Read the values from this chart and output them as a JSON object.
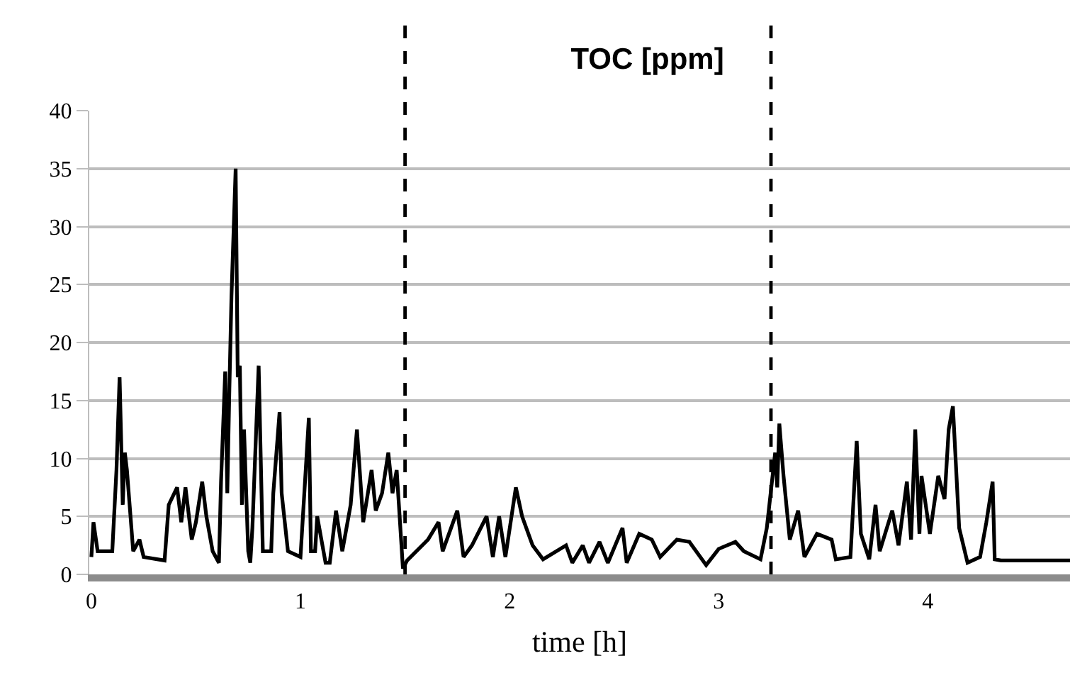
{
  "chart_data": {
    "type": "line",
    "title": "TOC [ppm]",
    "xlabel": "time [h]",
    "xlim": [
      -0.01,
      4.68
    ],
    "xticks": [
      0,
      1,
      2,
      3,
      4
    ],
    "ylim": [
      0,
      40
    ],
    "yticks": [
      0,
      5,
      10,
      15,
      20,
      25,
      30,
      35,
      40
    ],
    "grid": "y",
    "marker": "none",
    "line_style": "solid",
    "ref_lines": [
      {
        "axis": "x",
        "value": 1.5,
        "line_style": "dashed",
        "color": "#000000"
      },
      {
        "axis": "x",
        "value": 3.25,
        "line_style": "dashed",
        "color": "#000000"
      }
    ],
    "series": [
      {
        "color": "#000000",
        "x": [
          0,
          0.01,
          0.03,
          0.1,
          0.12,
          0.135,
          0.15,
          0.16,
          0.17,
          0.2,
          0.23,
          0.25,
          0.35,
          0.37,
          0.41,
          0.43,
          0.45,
          0.48,
          0.5,
          0.53,
          0.55,
          0.58,
          0.61,
          0.62,
          0.64,
          0.65,
          0.66,
          0.67,
          0.69,
          0.7,
          0.71,
          0.72,
          0.73,
          0.75,
          0.76,
          0.77,
          0.8,
          0.82,
          0.86,
          0.87,
          0.9,
          0.91,
          0.94,
          1.0,
          1.04,
          1.05,
          1.07,
          1.08,
          1.12,
          1.14,
          1.17,
          1.2,
          1.24,
          1.27,
          1.3,
          1.34,
          1.36,
          1.39,
          1.42,
          1.44,
          1.46,
          1.49,
          1.51,
          1.61,
          1.66,
          1.68,
          1.75,
          1.78,
          1.82,
          1.89,
          1.92,
          1.95,
          1.98,
          2.03,
          2.06,
          2.11,
          2.16,
          2.27,
          2.3,
          2.35,
          2.38,
          2.43,
          2.47,
          2.54,
          2.56,
          2.62,
          2.68,
          2.72,
          2.8,
          2.86,
          2.94,
          3.0,
          3.08,
          3.12,
          3.2,
          3.23,
          3.27,
          3.28,
          3.29,
          3.31,
          3.34,
          3.38,
          3.41,
          3.47,
          3.54,
          3.56,
          3.63,
          3.66,
          3.68,
          3.72,
          3.75,
          3.77,
          3.83,
          3.86,
          3.9,
          3.92,
          3.94,
          3.96,
          3.97,
          4.01,
          4.05,
          4.08,
          4.1,
          4.12,
          4.15,
          4.19,
          4.25,
          4.28,
          4.31,
          4.32,
          4.35,
          4.68
        ],
        "values": [
          1.5,
          4.5,
          2,
          2,
          9,
          17,
          6,
          10.5,
          9,
          2,
          3,
          1.5,
          1.2,
          6,
          7.5,
          4.5,
          7.5,
          3,
          4.5,
          8,
          5,
          2,
          1,
          8,
          17.5,
          7,
          16,
          24,
          35,
          17,
          18,
          6,
          12.5,
          2,
          1,
          4,
          18,
          2,
          2,
          7,
          14,
          7,
          2,
          1.5,
          13.5,
          2,
          2,
          5,
          1,
          1,
          5.5,
          2,
          6,
          12.5,
          4.5,
          9,
          5.5,
          7,
          10.5,
          7,
          9,
          0.5,
          1.2,
          3,
          4.5,
          2,
          5.5,
          1.5,
          2.5,
          5,
          1.5,
          5,
          1.5,
          7.5,
          5,
          2.5,
          1.3,
          2.5,
          1,
          2.5,
          1,
          2.8,
          1,
          4,
          1,
          3.5,
          3,
          1.5,
          3,
          2.8,
          0.8,
          2.2,
          2.8,
          2,
          1.3,
          4,
          10.5,
          7.5,
          13,
          8.5,
          3,
          5.5,
          1.5,
          3.5,
          3,
          1.3,
          1.5,
          11.5,
          3.5,
          1.3,
          6,
          2,
          5.5,
          2.5,
          8,
          3,
          12.5,
          3.5,
          8.5,
          3.5,
          8.5,
          6.5,
          12.5,
          14.5,
          4,
          1,
          1.5,
          4.5,
          8,
          1.3,
          1.2,
          1.2
        ]
      }
    ]
  }
}
